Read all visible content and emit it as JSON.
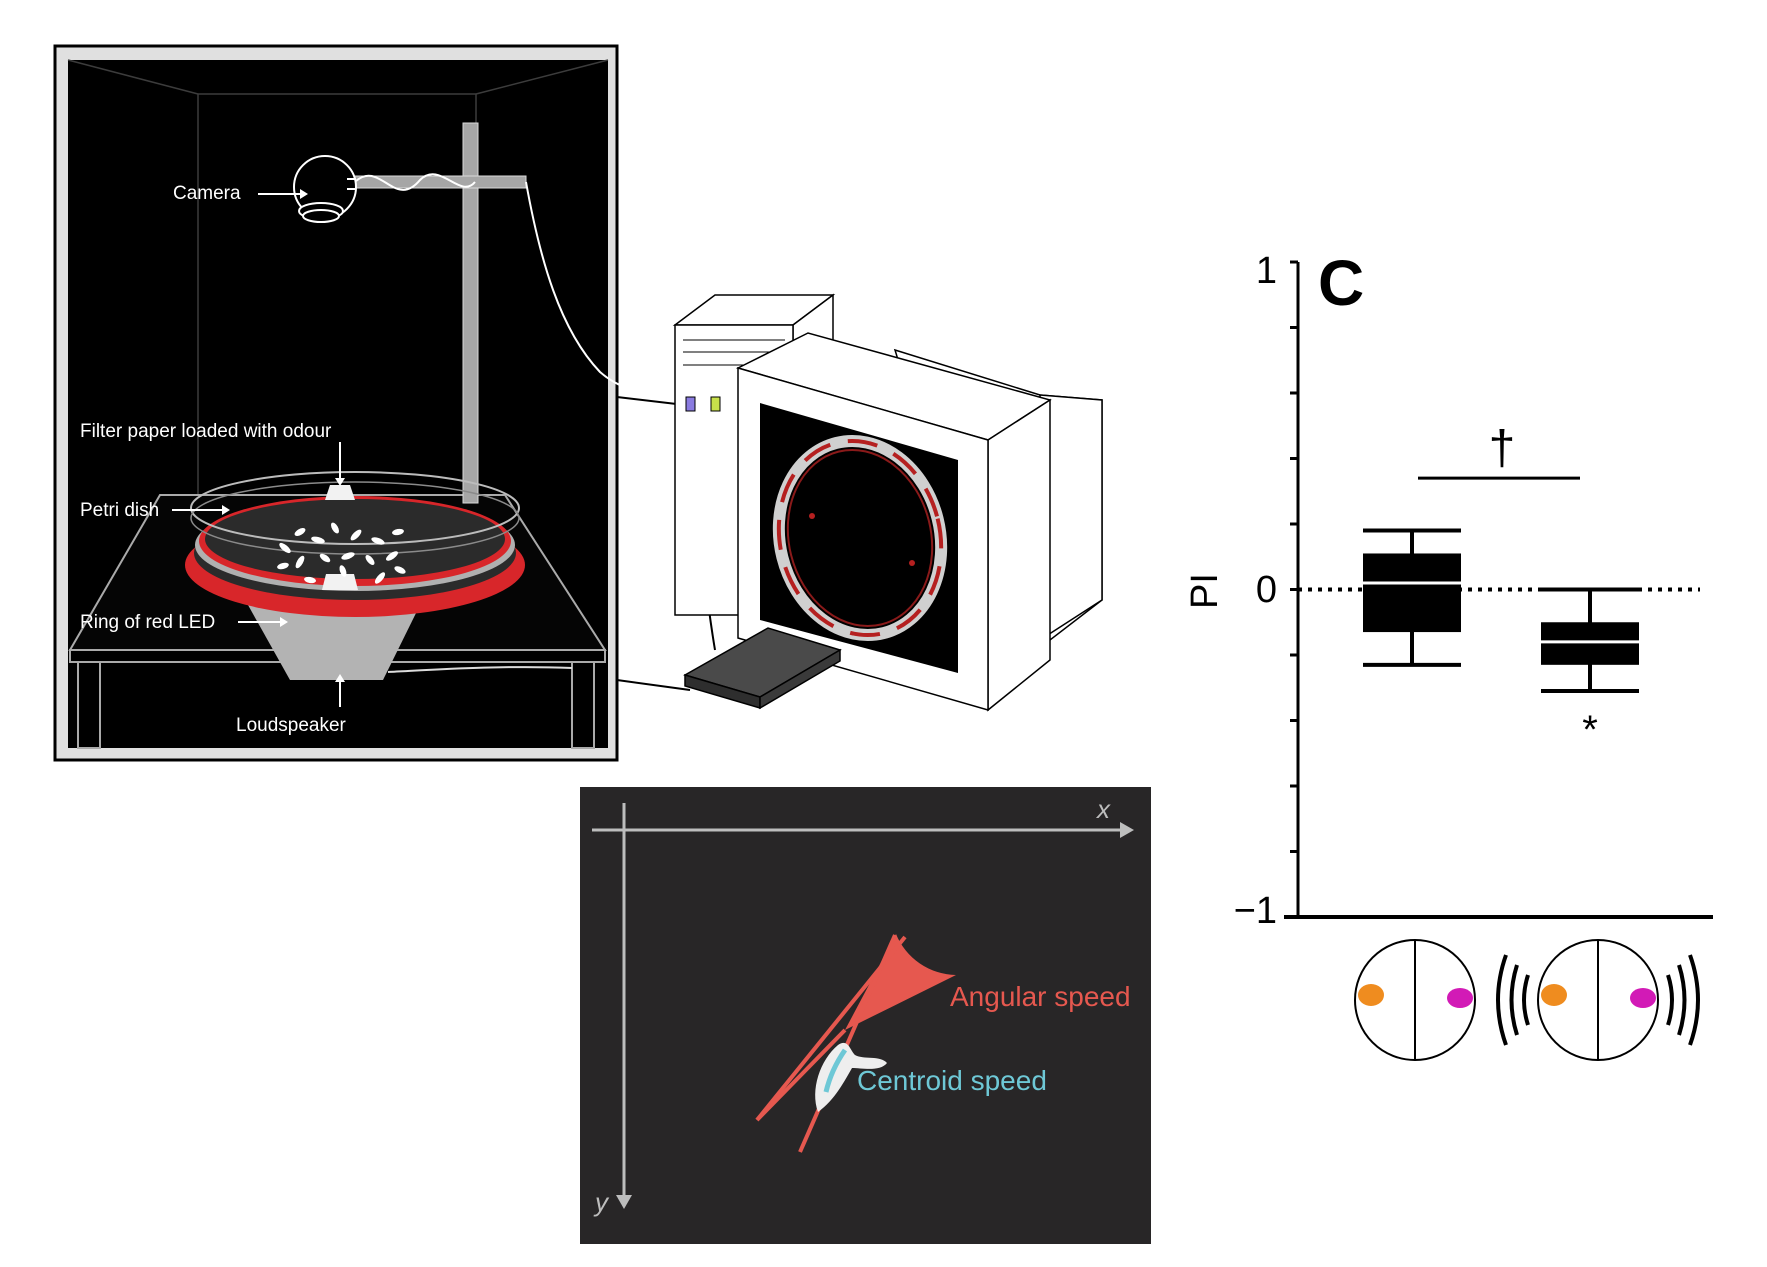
{
  "apparatus": {
    "labels": {
      "camera": "Camera",
      "filter_paper": "Filter paper loaded with odour",
      "petri_dish": "Petri dish",
      "led_ring": "Ring of red LED",
      "loudspeaker": "Loudspeaker"
    },
    "colors": {
      "background": "#000000",
      "led": "#d8262a",
      "label": "#ffffff",
      "frame": "#bdbdbd"
    }
  },
  "tracking": {
    "axis_x": "x",
    "axis_y": "y",
    "angular_label": "Angular speed",
    "centroid_label": "Centroid speed",
    "colors": {
      "background": "#282627",
      "angular": "#e6584f",
      "centroid": "#6ec8d6",
      "axis": "#bdbdbd"
    }
  },
  "chart_data": {
    "type": "box",
    "panel_letter": "C",
    "ylabel": "PI",
    "ylim": [
      -1,
      1
    ],
    "y_tick_labels": [
      "1",
      "0",
      "−1"
    ],
    "y_ticks": [
      1,
      0.8,
      0.6,
      0.4,
      0.2,
      0,
      -0.2,
      -0.4,
      -0.6,
      -0.8,
      -1
    ],
    "reference_line": 0,
    "boxes": [
      {
        "min": -0.23,
        "q1": -0.13,
        "median": 0.02,
        "q3": 0.11,
        "max": 0.18
      },
      {
        "min": -0.31,
        "q1": -0.23,
        "median": -0.16,
        "q3": -0.1,
        "max": 0.0,
        "annotation": "*"
      }
    ],
    "significance": {
      "symbol": "†",
      "y": 0.34
    },
    "condition_colors": {
      "left": "#ef8c1f",
      "right": "#d21ab6"
    }
  }
}
